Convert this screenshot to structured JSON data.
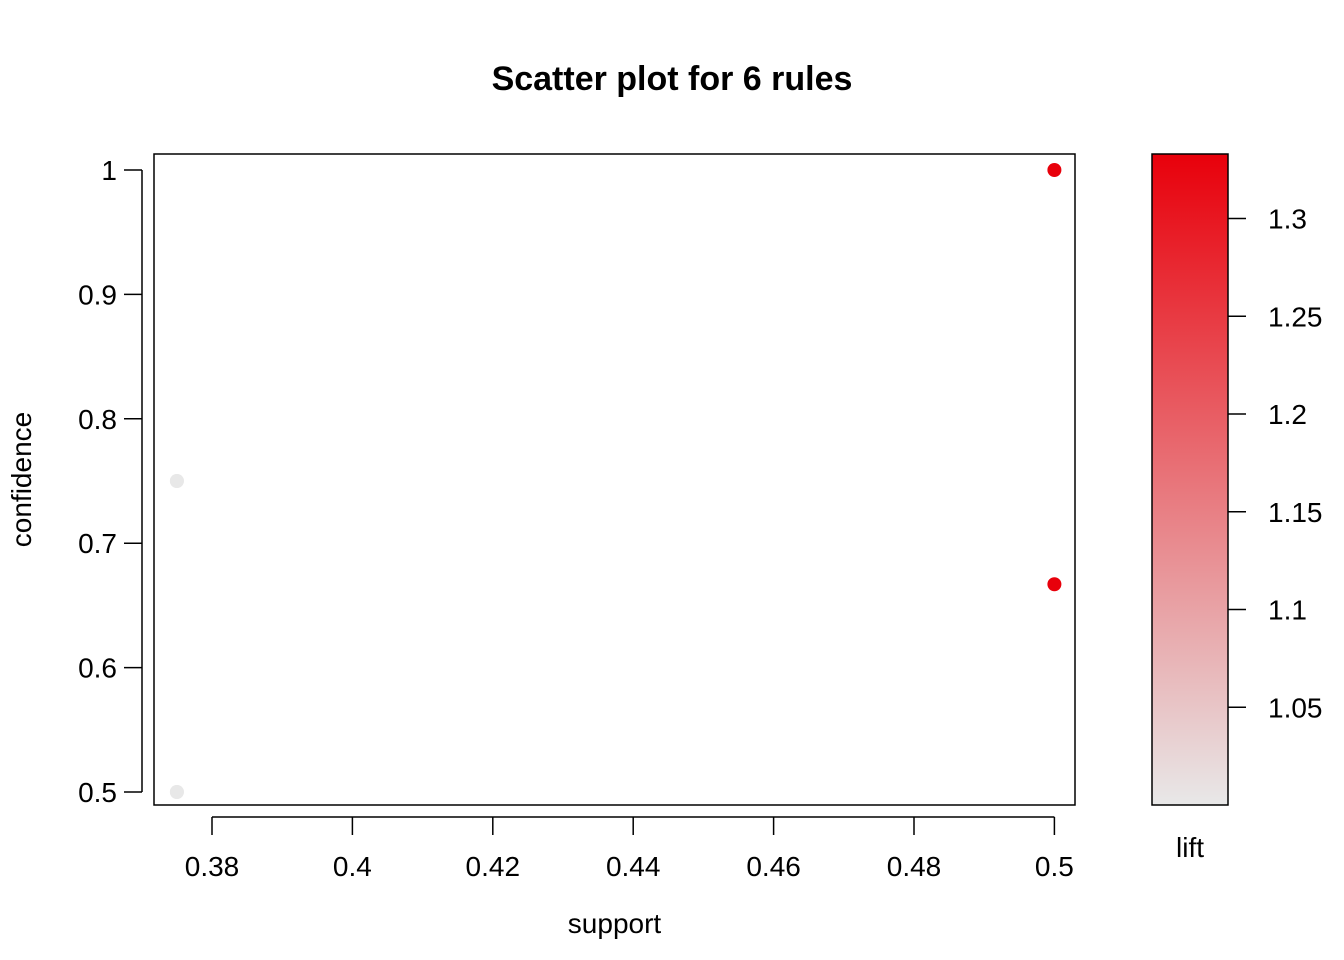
{
  "chart_data": {
    "type": "scatter",
    "title": "Scatter plot for 6 rules",
    "xlabel": "support",
    "ylabel": "confidence",
    "xlim": [
      0.37,
      0.5
    ],
    "ylim": [
      0.5,
      1.0
    ],
    "x_ticks": [
      0.38,
      0.4,
      0.42,
      0.44,
      0.46,
      0.48,
      0.5
    ],
    "x_tick_labels": [
      "0.38",
      "0.4",
      "0.42",
      "0.44",
      "0.46",
      "0.48",
      "0.5"
    ],
    "y_ticks": [
      0.5,
      0.6,
      0.7,
      0.8,
      0.9,
      1.0
    ],
    "y_tick_labels": [
      "0.5",
      "0.6",
      "0.7",
      "0.8",
      "0.9",
      "1"
    ],
    "color_scale": {
      "label": "lift",
      "range": [
        1.0,
        1.333
      ],
      "ticks": [
        1.05,
        1.1,
        1.15,
        1.2,
        1.25,
        1.3
      ],
      "tick_labels": [
        "1.05",
        "1.1",
        "1.15",
        "1.2",
        "1.25",
        "1.3"
      ],
      "low_color": "#e8e8e8",
      "high_color": "#e8000b"
    },
    "points": [
      {
        "support": 0.375,
        "confidence": 0.75,
        "lift": 1.0
      },
      {
        "support": 0.375,
        "confidence": 0.75,
        "lift": 1.0
      },
      {
        "support": 0.375,
        "confidence": 0.5,
        "lift": 1.0
      },
      {
        "support": 0.375,
        "confidence": 0.5,
        "lift": 1.0
      },
      {
        "support": 0.5,
        "confidence": 1.0,
        "lift": 1.333
      },
      {
        "support": 0.5,
        "confidence": 0.667,
        "lift": 1.333
      }
    ],
    "grid": false,
    "legend": "right"
  }
}
